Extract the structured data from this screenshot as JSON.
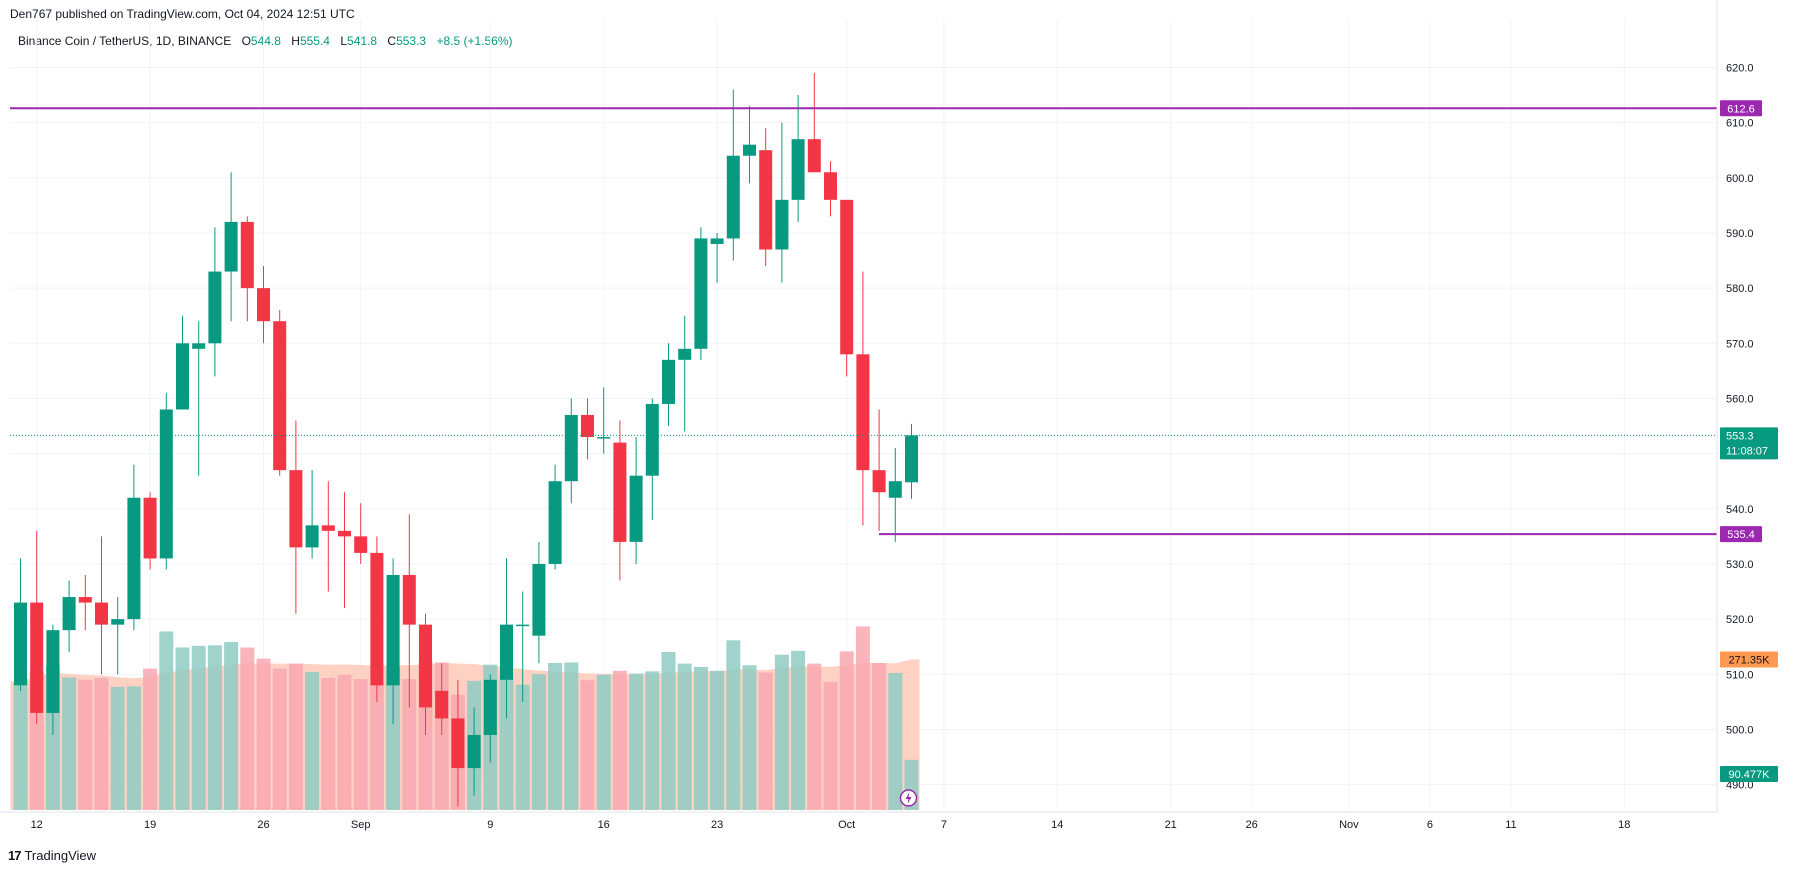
{
  "header": {
    "published_text": "Den767 published on TradingView.com, Oct 04, 2024 12:51 UTC"
  },
  "legend": {
    "symbol": "Binance Coin / TetherUS, 1D, BINANCE",
    "open_label": "O",
    "open": "544.8",
    "high_label": "H",
    "high": "555.4",
    "low_label": "L",
    "low": "541.8",
    "close_label": "C",
    "close": "553.3",
    "change": "+8.5 (+1.56%)"
  },
  "footer": {
    "brand": "TradingView",
    "logo": "17"
  },
  "colors": {
    "up": "#089981",
    "down": "#f23645",
    "hline": "#9c27b0",
    "ma": "#ffccbc",
    "vol_up": "#8ecbc3",
    "vol_down": "#f7a8af"
  },
  "chart_data": {
    "type": "candlestick",
    "title": "Binance Coin / TetherUS, 1D, BINANCE",
    "y_ticks": [
      490,
      500,
      510,
      520,
      530,
      540,
      550,
      560,
      570,
      580,
      590,
      600,
      610,
      620
    ],
    "ylim": [
      485.4,
      628.6
    ],
    "x_labels": [
      "12",
      "19",
      "26",
      "Sep",
      "9",
      "16",
      "23",
      "Oct",
      "7",
      "14",
      "21",
      "26",
      "Nov",
      "6",
      "11",
      "18"
    ],
    "x_label_dates": [
      "2024-08-12",
      "2024-08-19",
      "2024-08-26",
      "2024-09-01",
      "2024-09-09",
      "2024-09-16",
      "2024-09-23",
      "2024-10-01",
      "2024-10-07",
      "2024-10-14",
      "2024-10-21",
      "2024-10-26",
      "2024-11-01",
      "2024-11-06",
      "2024-11-11",
      "2024-11-18"
    ],
    "candles": [
      {
        "date": "2024-08-11",
        "o": 508,
        "h": 531,
        "l": 507,
        "c": 523
      },
      {
        "date": "2024-08-12",
        "o": 523,
        "h": 536,
        "l": 501,
        "c": 503
      },
      {
        "date": "2024-08-13",
        "o": 503,
        "h": 519,
        "l": 499,
        "c": 518
      },
      {
        "date": "2024-08-14",
        "o": 518,
        "h": 527,
        "l": 514,
        "c": 524
      },
      {
        "date": "2024-08-15",
        "o": 524,
        "h": 528,
        "l": 518,
        "c": 523
      },
      {
        "date": "2024-08-16",
        "o": 523,
        "h": 535,
        "l": 510,
        "c": 519
      },
      {
        "date": "2024-08-17",
        "o": 519,
        "h": 524,
        "l": 510,
        "c": 520
      },
      {
        "date": "2024-08-18",
        "o": 520,
        "h": 548,
        "l": 518,
        "c": 542
      },
      {
        "date": "2024-08-19",
        "o": 542,
        "h": 543,
        "l": 529,
        "c": 531
      },
      {
        "date": "2024-08-20",
        "o": 531,
        "h": 561,
        "l": 529,
        "c": 558
      },
      {
        "date": "2024-08-21",
        "o": 558,
        "h": 575,
        "l": 558,
        "c": 570
      },
      {
        "date": "2024-08-22",
        "o": 569,
        "h": 574,
        "l": 546,
        "c": 570
      },
      {
        "date": "2024-08-23",
        "o": 570,
        "h": 591,
        "l": 564,
        "c": 583
      },
      {
        "date": "2024-08-24",
        "o": 583,
        "h": 601,
        "l": 574,
        "c": 592
      },
      {
        "date": "2024-08-25",
        "o": 592,
        "h": 593,
        "l": 574,
        "c": 580
      },
      {
        "date": "2024-08-26",
        "o": 580,
        "h": 584,
        "l": 570,
        "c": 574
      },
      {
        "date": "2024-08-27",
        "o": 574,
        "h": 576,
        "l": 546,
        "c": 547
      },
      {
        "date": "2024-08-28",
        "o": 547,
        "h": 556,
        "l": 521,
        "c": 533
      },
      {
        "date": "2024-08-29",
        "o": 533,
        "h": 547,
        "l": 531,
        "c": 537
      },
      {
        "date": "2024-08-30",
        "o": 537,
        "h": 545,
        "l": 525,
        "c": 536
      },
      {
        "date": "2024-08-31",
        "o": 536,
        "h": 543,
        "l": 522,
        "c": 535
      },
      {
        "date": "2024-09-01",
        "o": 535,
        "h": 541,
        "l": 530,
        "c": 532
      },
      {
        "date": "2024-09-02",
        "o": 532,
        "h": 535,
        "l": 505,
        "c": 508
      },
      {
        "date": "2024-09-03",
        "o": 508,
        "h": 531,
        "l": 501,
        "c": 528
      },
      {
        "date": "2024-09-04",
        "o": 528,
        "h": 539,
        "l": 504,
        "c": 519
      },
      {
        "date": "2024-09-05",
        "o": 519,
        "h": 521,
        "l": 499,
        "c": 504
      },
      {
        "date": "2024-09-06",
        "o": 507,
        "h": 512,
        "l": 499,
        "c": 502
      },
      {
        "date": "2024-09-07",
        "o": 502,
        "h": 509,
        "l": 486,
        "c": 493
      },
      {
        "date": "2024-09-08",
        "o": 493,
        "h": 504,
        "l": 488,
        "c": 499
      },
      {
        "date": "2024-09-09",
        "o": 499,
        "h": 510,
        "l": 494,
        "c": 509
      },
      {
        "date": "2024-09-10",
        "o": 509,
        "h": 531,
        "l": 502,
        "c": 519
      },
      {
        "date": "2024-09-11",
        "o": 519,
        "h": 525,
        "l": 505,
        "c": 519
      },
      {
        "date": "2024-09-12",
        "o": 517,
        "h": 534,
        "l": 512,
        "c": 530
      },
      {
        "date": "2024-09-13",
        "o": 530,
        "h": 548,
        "l": 529,
        "c": 545
      },
      {
        "date": "2024-09-14",
        "o": 545,
        "h": 560,
        "l": 541,
        "c": 557
      },
      {
        "date": "2024-09-15",
        "o": 557,
        "h": 560,
        "l": 549,
        "c": 553
      },
      {
        "date": "2024-09-16",
        "o": 553,
        "h": 562,
        "l": 550,
        "c": 553
      },
      {
        "date": "2024-09-17",
        "o": 552,
        "h": 556,
        "l": 527,
        "c": 534
      },
      {
        "date": "2024-09-18",
        "o": 534,
        "h": 553,
        "l": 530,
        "c": 546
      },
      {
        "date": "2024-09-19",
        "o": 546,
        "h": 560,
        "l": 538,
        "c": 559
      },
      {
        "date": "2024-09-20",
        "o": 559,
        "h": 570,
        "l": 555,
        "c": 567
      },
      {
        "date": "2024-09-21",
        "o": 567,
        "h": 575,
        "l": 554,
        "c": 569
      },
      {
        "date": "2024-09-22",
        "o": 569,
        "h": 591,
        "l": 567,
        "c": 589
      },
      {
        "date": "2024-09-23",
        "o": 588,
        "h": 590,
        "l": 581,
        "c": 589
      },
      {
        "date": "2024-09-24",
        "o": 589,
        "h": 616,
        "l": 585,
        "c": 604
      },
      {
        "date": "2024-09-25",
        "o": 604,
        "h": 613,
        "l": 599,
        "c": 606
      },
      {
        "date": "2024-09-26",
        "o": 605,
        "h": 609,
        "l": 584,
        "c": 587
      },
      {
        "date": "2024-09-27",
        "o": 587,
        "h": 610,
        "l": 581,
        "c": 596
      },
      {
        "date": "2024-09-28",
        "o": 596,
        "h": 615,
        "l": 592,
        "c": 607
      },
      {
        "date": "2024-09-29",
        "o": 607,
        "h": 619,
        "l": 601,
        "c": 601
      },
      {
        "date": "2024-09-30",
        "o": 601,
        "h": 603,
        "l": 593,
        "c": 596
      },
      {
        "date": "2024-10-01",
        "o": 596,
        "h": 596,
        "l": 564,
        "c": 568
      },
      {
        "date": "2024-10-02",
        "o": 568,
        "h": 583,
        "l": 537,
        "c": 547
      },
      {
        "date": "2024-10-03",
        "o": 547,
        "h": 558,
        "l": 536,
        "c": 543
      },
      {
        "date": "2024-10-04",
        "o": 542,
        "h": 551,
        "l": 534,
        "c": 545
      },
      {
        "date": "2024-10-05",
        "o": 544.8,
        "h": 555.4,
        "l": 541.8,
        "c": 553.3
      }
    ],
    "volume_axis_max": 321,
    "volume": [
      232,
      250,
      261,
      239,
      235,
      238,
      222,
      223,
      255,
      322,
      293,
      296,
      297,
      303,
      293,
      273,
      255,
      264,
      249,
      238,
      244,
      236,
      228,
      258,
      236,
      268,
      266,
      208,
      233,
      262,
      243,
      226,
      245,
      265,
      266,
      234,
      244,
      251,
      246,
      250,
      285,
      264,
      258,
      251,
      306,
      261,
      248,
      280,
      287,
      264,
      231,
      286,
      331,
      265,
      247,
      90.477
    ],
    "volume_ma_current": 271.35,
    "levels": [
      {
        "price": 612.6,
        "label": "612.6",
        "start_date": "2024-08-11"
      },
      {
        "price": 535.4,
        "label": "535.4",
        "start_date": "2024-10-03"
      }
    ],
    "last_price": {
      "value": 553.3,
      "label": "553.3",
      "countdown": "11:08:07"
    },
    "volume_ma_label": "271.35K",
    "volume_label": "90.477K",
    "grid": true
  }
}
